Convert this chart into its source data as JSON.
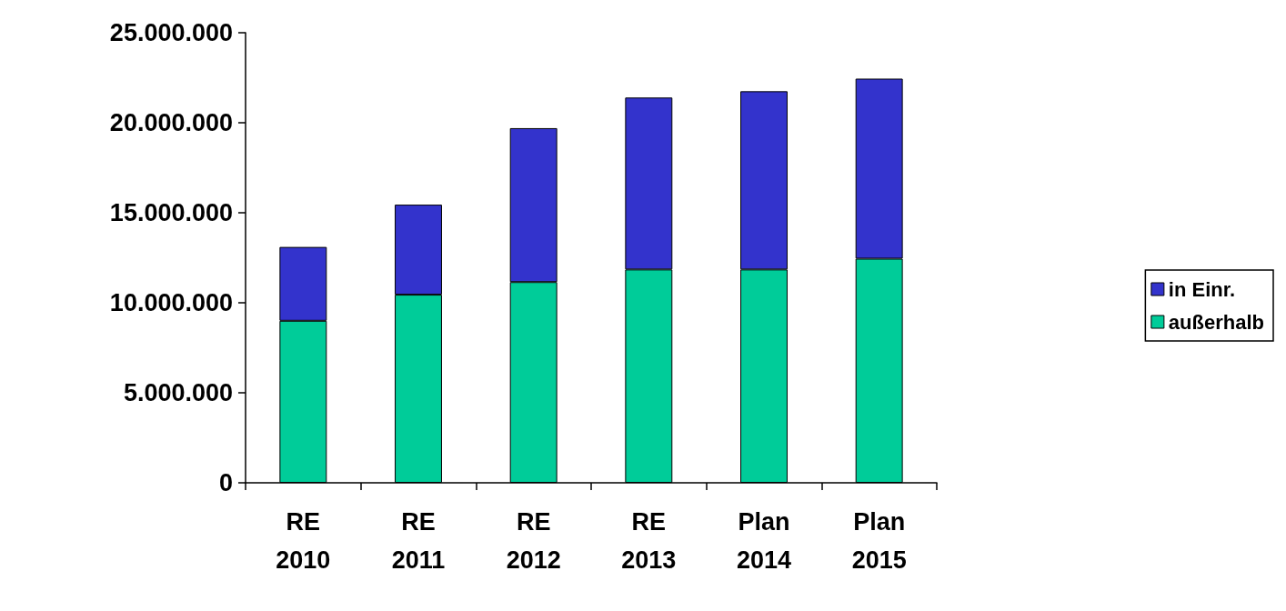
{
  "chart_data": {
    "type": "bar",
    "stacked": true,
    "categories": [
      "RE 2010",
      "RE 2011",
      "RE 2012",
      "RE 2013",
      "Plan 2014",
      "Plan 2015"
    ],
    "series": [
      {
        "name": "außerhalb",
        "color": "#00cc99",
        "values": [
          9000000,
          10450000,
          11150000,
          11850000,
          11850000,
          12450000
        ]
      },
      {
        "name": "in Einr.",
        "color": "#3333cc",
        "values": [
          4100000,
          5000000,
          8550000,
          9550000,
          9900000,
          10000000
        ]
      }
    ],
    "ylim": [
      0,
      25000000
    ],
    "yticks": [
      {
        "value": 0,
        "label": "0"
      },
      {
        "value": 5000000,
        "label": "5.000.000"
      },
      {
        "value": 10000000,
        "label": "10.000.000"
      },
      {
        "value": 15000000,
        "label": "15.000.000"
      },
      {
        "value": 20000000,
        "label": "20.000.000"
      },
      {
        "value": 25000000,
        "label": "25.000.000"
      }
    ],
    "grid": false,
    "legend": "right"
  }
}
